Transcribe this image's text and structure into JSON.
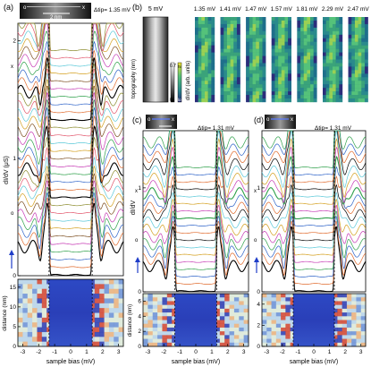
{
  "figure": {
    "panel_a": {
      "label": "(a)",
      "delta_tip": "Δtip= 1.35 mV",
      "scale_bar": "2 nm",
      "marker_o": "o",
      "marker_x": "x",
      "side_x": "x",
      "side_o": "o",
      "ylabel_top": "dI/dV (μS)",
      "ylabel_bottom": "distance (nm)",
      "xlabel": "sample bias (mV)",
      "yticks_top": [
        "2",
        "1",
        "0"
      ],
      "yticks_bottom": [
        "15",
        "10",
        "5",
        "0"
      ],
      "xticks": [
        "-3",
        "-2",
        "-1",
        "0",
        "1",
        "2",
        "3"
      ]
    },
    "panel_b": {
      "label": "(b)",
      "topo_title": "5 mV",
      "topo_ylabel": "topography (nm)",
      "topo_scale": [
        "0.7",
        "0"
      ],
      "map_ylabel": "dI/dV (arb. units)",
      "map_scale": [
        "hi",
        "lo"
      ],
      "map_biases": [
        "1.35 mV",
        "1.41 mV",
        "1.47 mV",
        "1.57 mV",
        "1.81 mV",
        "2.29 mV",
        "2.47 mV"
      ]
    },
    "panel_c": {
      "label": "(c)",
      "delta_tip": "Δtip= 1.31 mV",
      "marker_o": "o",
      "marker_x": "x",
      "side_x": "x",
      "side_o": "o",
      "ylabel_top": "dI/dV",
      "ylabel_bottom": "distance (nm)",
      "xlabel": "sample bias (mV)",
      "yticks_top": [
        "1",
        "0"
      ],
      "yticks_bottom": [
        "6",
        "4",
        "2",
        "0"
      ],
      "xticks": [
        "-3",
        "-2",
        "-1",
        "0",
        "1",
        "2",
        "3"
      ]
    },
    "panel_d": {
      "label": "(d)",
      "delta_tip": "Δtip= 1.31 mV",
      "marker_o": "o",
      "marker_x": "x",
      "side_x": "x",
      "side_o": "o",
      "yticks_top": [
        "1",
        "0"
      ],
      "yticks_bottom": [
        "4",
        "2",
        "0"
      ],
      "xlabel": "sample bias (mV)",
      "xticks": [
        "-3",
        "-2",
        "-1",
        "0",
        "1",
        "2",
        "3"
      ]
    }
  },
  "chart_data": [
    {
      "panel": "a",
      "type": "line",
      "xlim": [
        -3.3,
        3.3
      ],
      "ylim": [
        0,
        2.15
      ],
      "gap_edges": [
        -1.35,
        1.35
      ],
      "trace_count": 30,
      "trace_offset": 0.066,
      "colors": [
        "#000000",
        "#e06a2c",
        "#2c62c8",
        "#2ea04a",
        "#c63ab4",
        "#7a4b1c",
        "#d4a020",
        "#5ac8d8",
        "#e2556b",
        "#8c8c2e"
      ]
    },
    {
      "panel": "a-map",
      "type": "heatmap",
      "xlim": [
        -3.3,
        3.3
      ],
      "ylim": [
        0,
        17
      ],
      "gap_edges": [
        -1.35,
        1.35
      ]
    },
    {
      "panel": "c",
      "type": "line",
      "xlim": [
        -3.3,
        3.3
      ],
      "ylim": [
        0,
        1.55
      ],
      "gap_edges": [
        -1.31,
        1.31
      ],
      "trace_count": 18,
      "trace_offset": 0.07,
      "colors": [
        "#000000",
        "#e06a2c",
        "#2c62c8",
        "#2ea04a",
        "#c63ab4",
        "#d4a020",
        "#5ac8d8"
      ]
    },
    {
      "panel": "c-map",
      "type": "heatmap",
      "xlim": [
        -3.3,
        3.3
      ],
      "ylim": [
        0,
        7
      ]
    },
    {
      "panel": "d",
      "type": "line",
      "xlim": [
        -3.3,
        3.3
      ],
      "ylim": [
        0,
        1.55
      ],
      "gap_edges": [
        -1.31,
        1.31
      ],
      "trace_count": 18,
      "trace_offset": 0.07,
      "colors": [
        "#000000",
        "#e06a2c",
        "#2c62c8",
        "#2ea04a",
        "#c63ab4",
        "#d4a020",
        "#5ac8d8"
      ]
    },
    {
      "panel": "d-map",
      "type": "heatmap",
      "xlim": [
        -3.3,
        3.3
      ],
      "ylim": [
        0,
        5
      ]
    }
  ]
}
